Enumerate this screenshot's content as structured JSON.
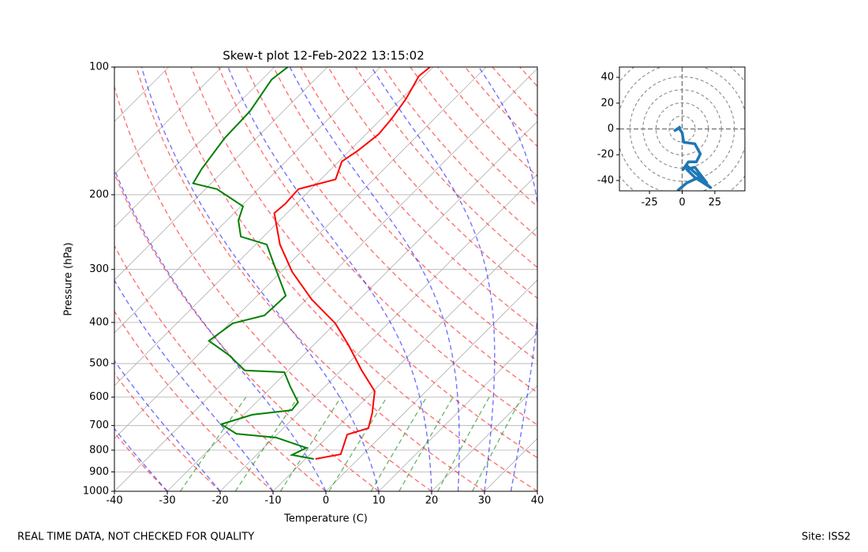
{
  "chart_data": [
    {
      "type": "skewt",
      "title": "Skew-t plot 12-Feb-2022 13:15:02",
      "x_label": "Temperature (C)",
      "y_label": "Pressure (hPa)",
      "xlim": [
        -40,
        40
      ],
      "xticks": [
        -40,
        -30,
        -20,
        -10,
        0,
        10,
        20,
        30,
        40
      ],
      "ylim": [
        1000,
        100
      ],
      "yticks": [
        100,
        200,
        300,
        400,
        500,
        600,
        700,
        800,
        900,
        1000
      ],
      "y_scale": "log",
      "grid": true,
      "series": [
        {
          "color": "#ff0000",
          "y": [
            839,
            818,
            735,
            710,
            655,
            581,
            519,
            453,
            402,
            353,
            304,
            262,
            221,
            210,
            194,
            184,
            167,
            157,
            144,
            132,
            119,
            105,
            100
          ],
          "values": [
            -8.1,
            -4.2,
            -6.7,
            -3.9,
            -6.0,
            -9.7,
            -16.1,
            -23.3,
            -30.0,
            -39.0,
            -47.9,
            -55.4,
            -62.4,
            -62.1,
            -62.4,
            -57.2,
            -59.4,
            -58.4,
            -57.6,
            -58.1,
            -59.1,
            -61.0,
            -60.6
          ]
        },
        {
          "color": "#008000",
          "y": [
            839,
            821,
            790,
            747,
            732,
            695,
            660,
            644,
            617,
            566,
            524,
            519,
            477,
            442,
            402,
            385,
            346,
            285,
            262,
            251,
            230,
            213,
            194,
            188,
            174,
            147,
            127,
            107,
            100
          ],
          "values": [
            -8.4,
            -13.3,
            -11.9,
            -19.6,
            -27.8,
            -32.5,
            -28.4,
            -21.8,
            -22.1,
            -26.6,
            -30.4,
            -38.2,
            -44.2,
            -50.6,
            -49.4,
            -44.9,
            -44.6,
            -53.9,
            -57.9,
            -64.3,
            -67.8,
            -69.6,
            -77.8,
            -83.4,
            -84.5,
            -86.0,
            -86.3,
            -88.2,
            -87.5
          ]
        }
      ]
    },
    {
      "type": "line",
      "xlim": [
        -48,
        48
      ],
      "xticks": [
        -25,
        0,
        25
      ],
      "ylim": [
        -48,
        48
      ],
      "yticks": [
        -40,
        -20,
        0,
        20,
        40
      ],
      "grid": true,
      "series": [
        {
          "color": "#1f77b4",
          "x": [
            -3.6,
            3.6,
            12.7,
            21.8,
            9.7,
            3.6,
            9.7,
            18.8,
            3.6,
            0.6,
            4.8,
            10.9,
            13.9,
            9.7,
            1.2,
            0,
            -2.4,
            -5.5,
            -1.2
          ],
          "values": [
            -47.9,
            -41.8,
            -37.6,
            -45.5,
            -37.6,
            -31.5,
            -29.7,
            -41.8,
            -28.5,
            -31.5,
            -25.5,
            -25.5,
            -19.4,
            -11.5,
            -10.3,
            -3.0,
            0.6,
            -1.2,
            1.8
          ]
        }
      ]
    }
  ],
  "footer": {
    "left": "REAL TIME DATA, NOT CHECKED FOR QUALITY",
    "right": "Site: ISS2"
  }
}
